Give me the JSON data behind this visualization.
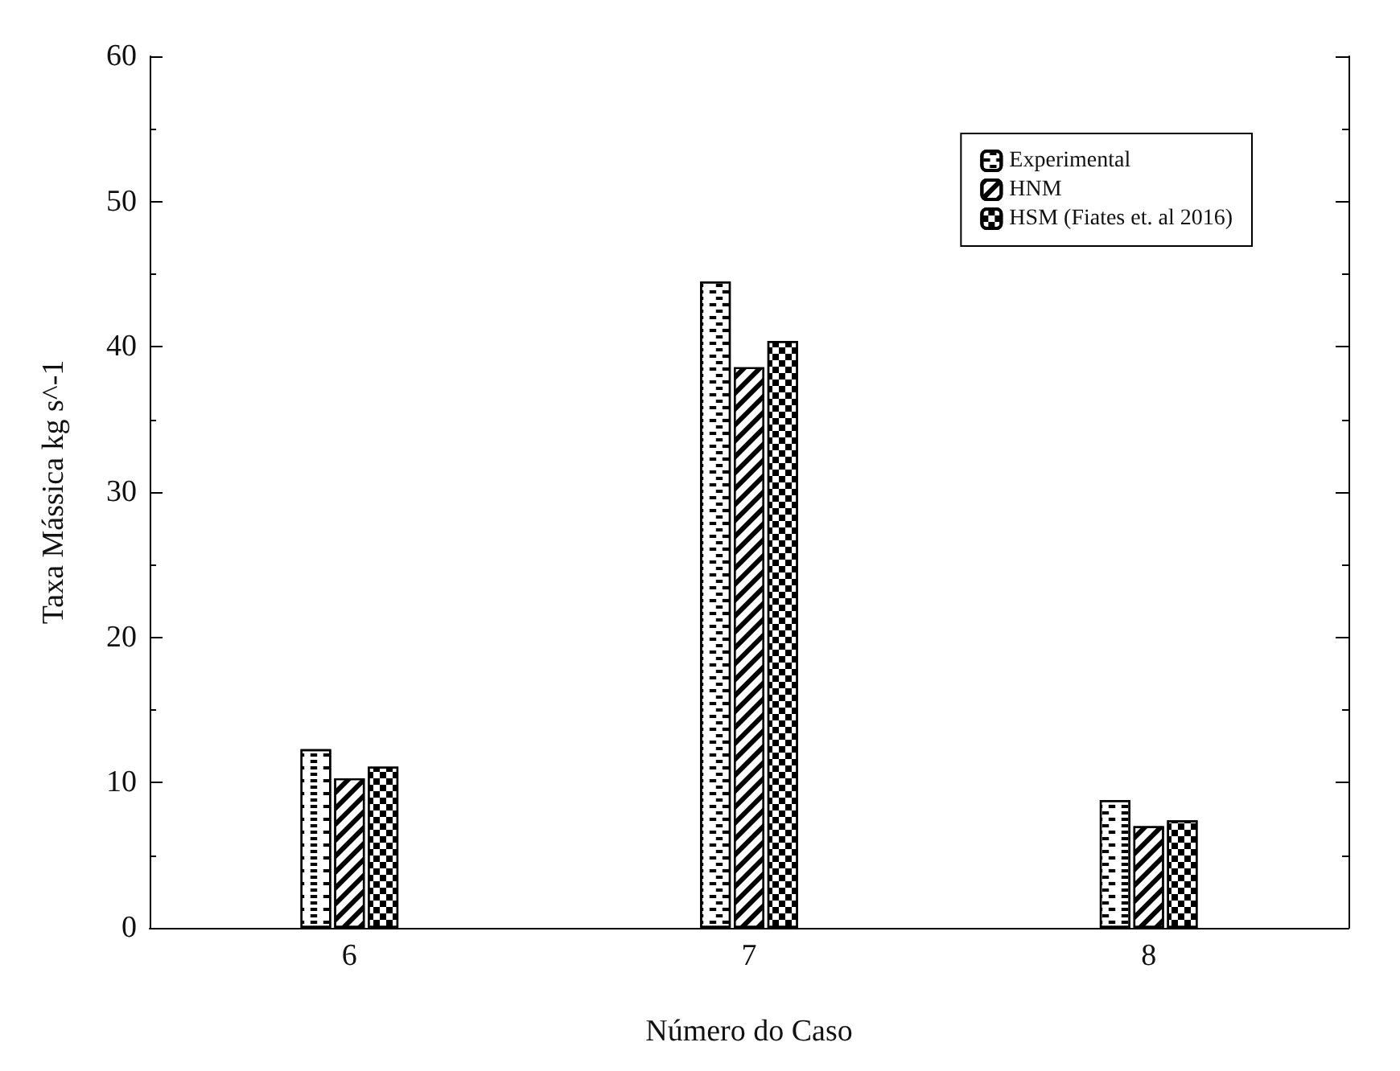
{
  "chart_data": {
    "type": "bar",
    "xlabel": "Número do Caso",
    "ylabel": "Taxa Mássica kg s^-1",
    "categories": [
      "6",
      "7",
      "8"
    ],
    "series": [
      {
        "name": "Experimental",
        "color": "#000000",
        "values": [
          12.3,
          44.5,
          8.8
        ]
      },
      {
        "name": "HNM",
        "color": "#000000",
        "values": [
          10.3,
          38.6,
          7.0
        ]
      },
      {
        "name": "HSM (Fiates et. al 2016)",
        "color": "#000000",
        "values": [
          11.1,
          40.4,
          7.4
        ]
      }
    ],
    "ylim": [
      0,
      60
    ],
    "yticks": [
      0,
      10,
      20,
      30,
      40,
      50,
      60
    ],
    "grid": false,
    "legend": "top right"
  }
}
